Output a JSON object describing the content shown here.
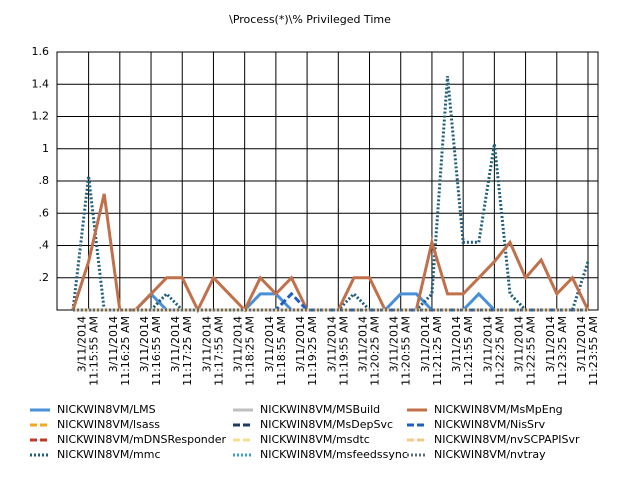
{
  "chart_data": {
    "type": "line",
    "title": "\\Process(*)\\% Privileged Time",
    "categories": [
      null,
      "3/11/2014 11:15:55 AM",
      null,
      "3/11/2014 11:16:25 AM",
      null,
      "3/11/2014 11:16:55 AM",
      null,
      "3/11/2014 11:17:25 AM",
      null,
      "3/11/2014 11:17:55 AM",
      null,
      "3/11/2014 11:18:25 AM",
      null,
      "3/11/2014 11:18:55 AM",
      null,
      "3/11/2014 11:19:25 AM",
      null,
      "3/11/2014 11:19:55 AM",
      null,
      "3/11/2014 11:20:25 AM",
      null,
      "3/11/2014 11:20:55 AM",
      null,
      "3/11/2014 11:21:25 AM",
      null,
      "3/11/2014 11:21:55 AM",
      null,
      "3/11/2014 11:22:25 AM",
      null,
      "3/11/2014 11:22:55 AM",
      null,
      "3/11/2014 11:23:25 AM",
      null,
      "3/11/2014 11:23:55 AM"
    ],
    "ylim": [
      0,
      1.6
    ],
    "yticks": [
      {
        "value": 0.2,
        "label": ".2"
      },
      {
        "value": 0.4,
        "label": ".4"
      },
      {
        "value": 0.6,
        "label": ".6"
      },
      {
        "value": 0.8,
        "label": ".8"
      },
      1,
      1.2,
      1.4,
      1.6
    ],
    "grid": true,
    "series": [
      {
        "name": "NICKWIN8VM/LMS",
        "color": "#4a90d9",
        "dash": "solid",
        "values": [
          0,
          0,
          0,
          0,
          0,
          0.1,
          0,
          0,
          0,
          0,
          0,
          0,
          0.1,
          0.1,
          0,
          0,
          0,
          0,
          0,
          0,
          0,
          0.1,
          0.1,
          0,
          0,
          0,
          0.1,
          0,
          0,
          0,
          0,
          0,
          0,
          0
        ]
      },
      {
        "name": "NICKWIN8VM/lsass",
        "color": "#f5a623",
        "dash": "dash",
        "values": [
          0,
          0,
          0,
          0,
          0,
          0,
          0,
          0,
          0,
          0,
          0,
          0,
          0,
          0,
          0,
          0,
          0,
          0,
          0,
          0,
          0,
          0,
          0,
          0,
          0,
          0,
          0,
          0,
          0,
          0,
          0,
          0,
          0,
          0
        ]
      },
      {
        "name": "NICKWIN8VM/mDNSResponder",
        "color": "#c0392b",
        "dash": "dash",
        "values": [
          0,
          0,
          0,
          0,
          0,
          0,
          0,
          0,
          0,
          0,
          0,
          0,
          0,
          0,
          0,
          0,
          0,
          0,
          0,
          0,
          0,
          0,
          0,
          0,
          0,
          0,
          0,
          0,
          0,
          0,
          0,
          0,
          0,
          0
        ]
      },
      {
        "name": "NICKWIN8VM/mmc",
        "color": "#1f5f7a",
        "dash": "dot",
        "values": [
          0,
          0.83,
          0,
          0,
          0,
          0,
          0.1,
          0,
          0,
          0,
          0,
          0,
          0,
          0,
          0,
          0,
          0,
          0,
          0.1,
          0,
          0,
          0,
          0,
          0.1,
          1.45,
          0.42,
          0.42,
          1.03,
          0.1,
          0,
          0,
          0,
          0,
          0.3
        ]
      },
      {
        "name": "NICKWIN8VM/MSBuild",
        "color": "#bfbfbf",
        "dash": "solid",
        "values": [
          0,
          0,
          0,
          0,
          0,
          0,
          0,
          0,
          0,
          0,
          0,
          0,
          0,
          0,
          0,
          0,
          0,
          0,
          0,
          0,
          0,
          0,
          0,
          0,
          0,
          0,
          0,
          0,
          0,
          0,
          0,
          0,
          0,
          0
        ]
      },
      {
        "name": "NICKWIN8VM/MsDepSvc",
        "color": "#1f3a5f",
        "dash": "dash",
        "values": [
          0,
          0,
          0,
          0,
          0,
          0,
          0,
          0,
          0,
          0,
          0,
          0,
          0,
          0,
          0,
          0,
          0,
          0,
          0,
          0,
          0,
          0,
          0,
          0,
          0,
          0,
          0,
          0,
          0,
          0,
          0,
          0,
          0,
          0
        ]
      },
      {
        "name": "NICKWIN8VM/msdtc",
        "color": "#f5e08c",
        "dash": "dash",
        "values": [
          0,
          0,
          0,
          0,
          0,
          0,
          0,
          0,
          0,
          0,
          0,
          0,
          0,
          0,
          0,
          0,
          0,
          0,
          0,
          0,
          0,
          0,
          0,
          0,
          0,
          0,
          0,
          0,
          0,
          0,
          0,
          0,
          0,
          0
        ]
      },
      {
        "name": "NICKWIN8VM/msfeedssync",
        "color": "#3aa0d0",
        "dash": "dot",
        "values": [
          0,
          0,
          0,
          0,
          0,
          0,
          0,
          0,
          0,
          0,
          0,
          0,
          0,
          0,
          0,
          0,
          0,
          0,
          0,
          0,
          0,
          0,
          0,
          0,
          0,
          0,
          0,
          0,
          0,
          0,
          0,
          0,
          0,
          0
        ]
      },
      {
        "name": "NICKWIN8VM/MsMpEng",
        "color": "#c0704a",
        "dash": "solid",
        "values": [
          0,
          0.3,
          0.72,
          0,
          0,
          0.1,
          0.2,
          0.2,
          0,
          0.2,
          0.1,
          0,
          0.2,
          0.1,
          0.2,
          0,
          0,
          0,
          0.2,
          0.2,
          0,
          0,
          0,
          0.42,
          0.1,
          0.1,
          0.2,
          0.3,
          0.42,
          0.2,
          0.31,
          0.1,
          0.2,
          0
        ]
      },
      {
        "name": "NICKWIN8VM/NisSrv",
        "color": "#1f5fbf",
        "dash": "dash",
        "values": [
          0,
          0,
          0,
          0,
          0,
          0,
          0,
          0,
          0,
          0,
          0,
          0,
          0,
          0,
          0.1,
          0,
          0,
          0,
          0,
          0,
          0,
          0,
          0,
          0,
          0,
          0,
          0,
          0,
          0,
          0,
          0,
          0,
          0,
          0
        ]
      },
      {
        "name": "NICKWIN8VM/nvSCPAPISvr",
        "color": "#f5c98c",
        "dash": "dash",
        "values": [
          0,
          0,
          0,
          0,
          0,
          0,
          0,
          0,
          0,
          0,
          0,
          0,
          0,
          0,
          0,
          0,
          0,
          0,
          0,
          0,
          0,
          0,
          0,
          0,
          0,
          0,
          0,
          0,
          0,
          0,
          0,
          0,
          0,
          0
        ]
      },
      {
        "name": "NICKWIN8VM/nvtray",
        "color": "#5a6e7a",
        "dash": "dot",
        "values": [
          0,
          0,
          0,
          0,
          0,
          0,
          0,
          0,
          0,
          0,
          0,
          0,
          0,
          0,
          0,
          0,
          0,
          0,
          0,
          0,
          0,
          0,
          0,
          0,
          0,
          0,
          0,
          0,
          0,
          0,
          0,
          0,
          0,
          0
        ]
      }
    ]
  }
}
